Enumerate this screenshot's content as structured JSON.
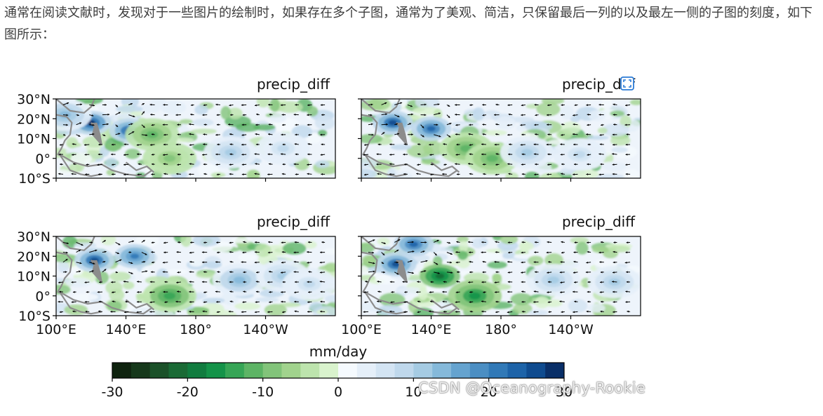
{
  "article": {
    "text": "通常在阅读文献时，发现对于一些图片的绘制时，如果存在多个子图，通常为了美观、简洁，只保留最后一列的以及最左一侧的子图的刻度，如下图所示："
  },
  "chart_data": {
    "type": "heatmap",
    "panels": [
      {
        "title": "precip_diff",
        "row": 0,
        "col": 0,
        "show_lat_ticks": true,
        "show_lon_ticks": false,
        "blobs": [
          {
            "lon": 120,
            "lat": 18,
            "value": 28
          },
          {
            "lon": 142,
            "lat": 14,
            "value": 26
          },
          {
            "lon": 105,
            "lat": 22,
            "value": 14
          },
          {
            "lon": 155,
            "lat": 12,
            "value": -10
          },
          {
            "lon": 200,
            "lat": 3,
            "value": 12
          },
          {
            "lon": 230,
            "lat": 5,
            "value": 8
          },
          {
            "lon": 165,
            "lat": 0,
            "value": -8
          }
        ]
      },
      {
        "title": "precip_diff",
        "row": 0,
        "col": 1,
        "show_lat_ticks": false,
        "show_lon_ticks": false,
        "blobs": [
          {
            "lon": 118,
            "lat": 18,
            "value": 26
          },
          {
            "lon": 140,
            "lat": 15,
            "value": 24
          },
          {
            "lon": 160,
            "lat": 5,
            "value": -12
          },
          {
            "lon": 175,
            "lat": 0,
            "value": -10
          },
          {
            "lon": 195,
            "lat": 3,
            "value": 10
          },
          {
            "lon": 225,
            "lat": 2,
            "value": 8
          }
        ]
      },
      {
        "title": "precip_diff",
        "row": 1,
        "col": 0,
        "show_lat_ticks": true,
        "show_lon_ticks": true,
        "blobs": [
          {
            "lon": 122,
            "lat": 18,
            "value": 26
          },
          {
            "lon": 145,
            "lat": 20,
            "value": 22
          },
          {
            "lon": 165,
            "lat": 0,
            "value": -14
          },
          {
            "lon": 205,
            "lat": 8,
            "value": 14
          },
          {
            "lon": 230,
            "lat": 10,
            "value": 10
          },
          {
            "lon": 245,
            "lat": 6,
            "value": 8
          }
        ]
      },
      {
        "title": "precip_diff",
        "row": 1,
        "col": 1,
        "show_lat_ticks": false,
        "show_lon_ticks": true,
        "blobs": [
          {
            "lon": 120,
            "lat": 16,
            "value": 26
          },
          {
            "lon": 130,
            "lat": 26,
            "value": 24
          },
          {
            "lon": 145,
            "lat": 10,
            "value": -22
          },
          {
            "lon": 165,
            "lat": 0,
            "value": -16
          },
          {
            "lon": 210,
            "lat": 8,
            "value": 12
          },
          {
            "lon": 245,
            "lat": 7,
            "value": 10
          }
        ]
      }
    ],
    "lon_range": [
      100,
      260
    ],
    "lat_range": [
      -10,
      30
    ],
    "lon_ticks": [
      "100°E",
      "140°E",
      "180°",
      "140°W"
    ],
    "lon_tick_values": [
      100,
      140,
      180,
      220
    ],
    "lat_ticks": [
      "30°N",
      "20°N",
      "10°N",
      "0°",
      "10°S"
    ],
    "lat_tick_values": [
      30,
      20,
      10,
      0,
      -10
    ],
    "colorbar": {
      "label": "mm/day",
      "range": [
        -30,
        30
      ],
      "ticks": [
        "-30",
        "-20",
        "-10",
        "0",
        "10",
        "20",
        "30"
      ],
      "tick_values": [
        -30,
        -20,
        -10,
        0,
        10,
        20,
        30
      ],
      "colors": [
        "#0f230f",
        "#16381b",
        "#1b5129",
        "#1a6a35",
        "#117c3f",
        "#149349",
        "#36a556",
        "#5db465",
        "#82c47a",
        "#a1d38d",
        "#bde4ad",
        "#d9f3cd",
        "#f5fafe",
        "#e5eff9",
        "#d3e4f3",
        "#bfd8ec",
        "#a5cbe3",
        "#85b9da",
        "#65a3cf",
        "#4b8ec3",
        "#3179b7",
        "#1d63a8",
        "#0f4b8f",
        "#092f68"
      ]
    }
  },
  "watermark": "CSDN @Oceanography-Rookie"
}
